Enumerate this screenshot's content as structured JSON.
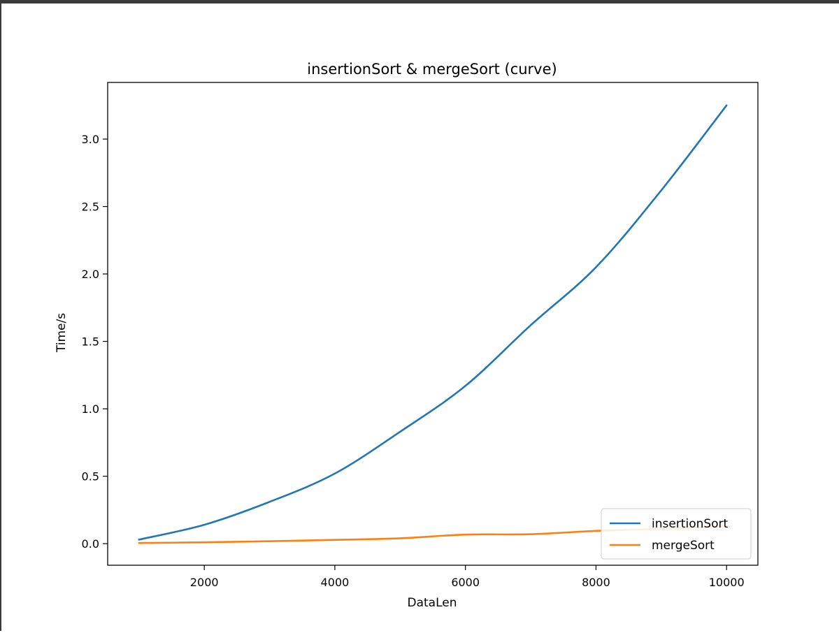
{
  "chart_data": {
    "type": "line",
    "title": "insertionSort & mergeSort (curve)",
    "xlabel": "DataLen",
    "ylabel": "Time/s",
    "xlim": [
      520,
      10480
    ],
    "ylim": [
      -0.16,
      3.42
    ],
    "xticks": [
      2000,
      4000,
      6000,
      8000,
      10000
    ],
    "yticks": [
      0.0,
      0.5,
      1.0,
      1.5,
      2.0,
      2.5,
      3.0
    ],
    "xtick_labels": [
      "2000",
      "4000",
      "6000",
      "8000",
      "10000"
    ],
    "ytick_labels": [
      "0.0",
      "0.5",
      "1.0",
      "1.5",
      "2.0",
      "2.5",
      "3.0"
    ],
    "grid": false,
    "legend_position": "lower-right",
    "x": [
      1000,
      2000,
      3000,
      4000,
      5000,
      6000,
      7000,
      8000,
      9000,
      10000
    ],
    "series": [
      {
        "name": "insertionSort",
        "color": "#1f77b4",
        "values": [
          0.03,
          0.14,
          0.31,
          0.52,
          0.83,
          1.17,
          1.62,
          2.05,
          2.62,
          3.25
        ]
      },
      {
        "name": "mergeSort",
        "color": "#ff7f0e",
        "values": [
          0.005,
          0.01,
          0.018,
          0.028,
          0.04,
          0.067,
          0.07,
          0.095,
          0.11,
          0.13
        ]
      }
    ]
  }
}
